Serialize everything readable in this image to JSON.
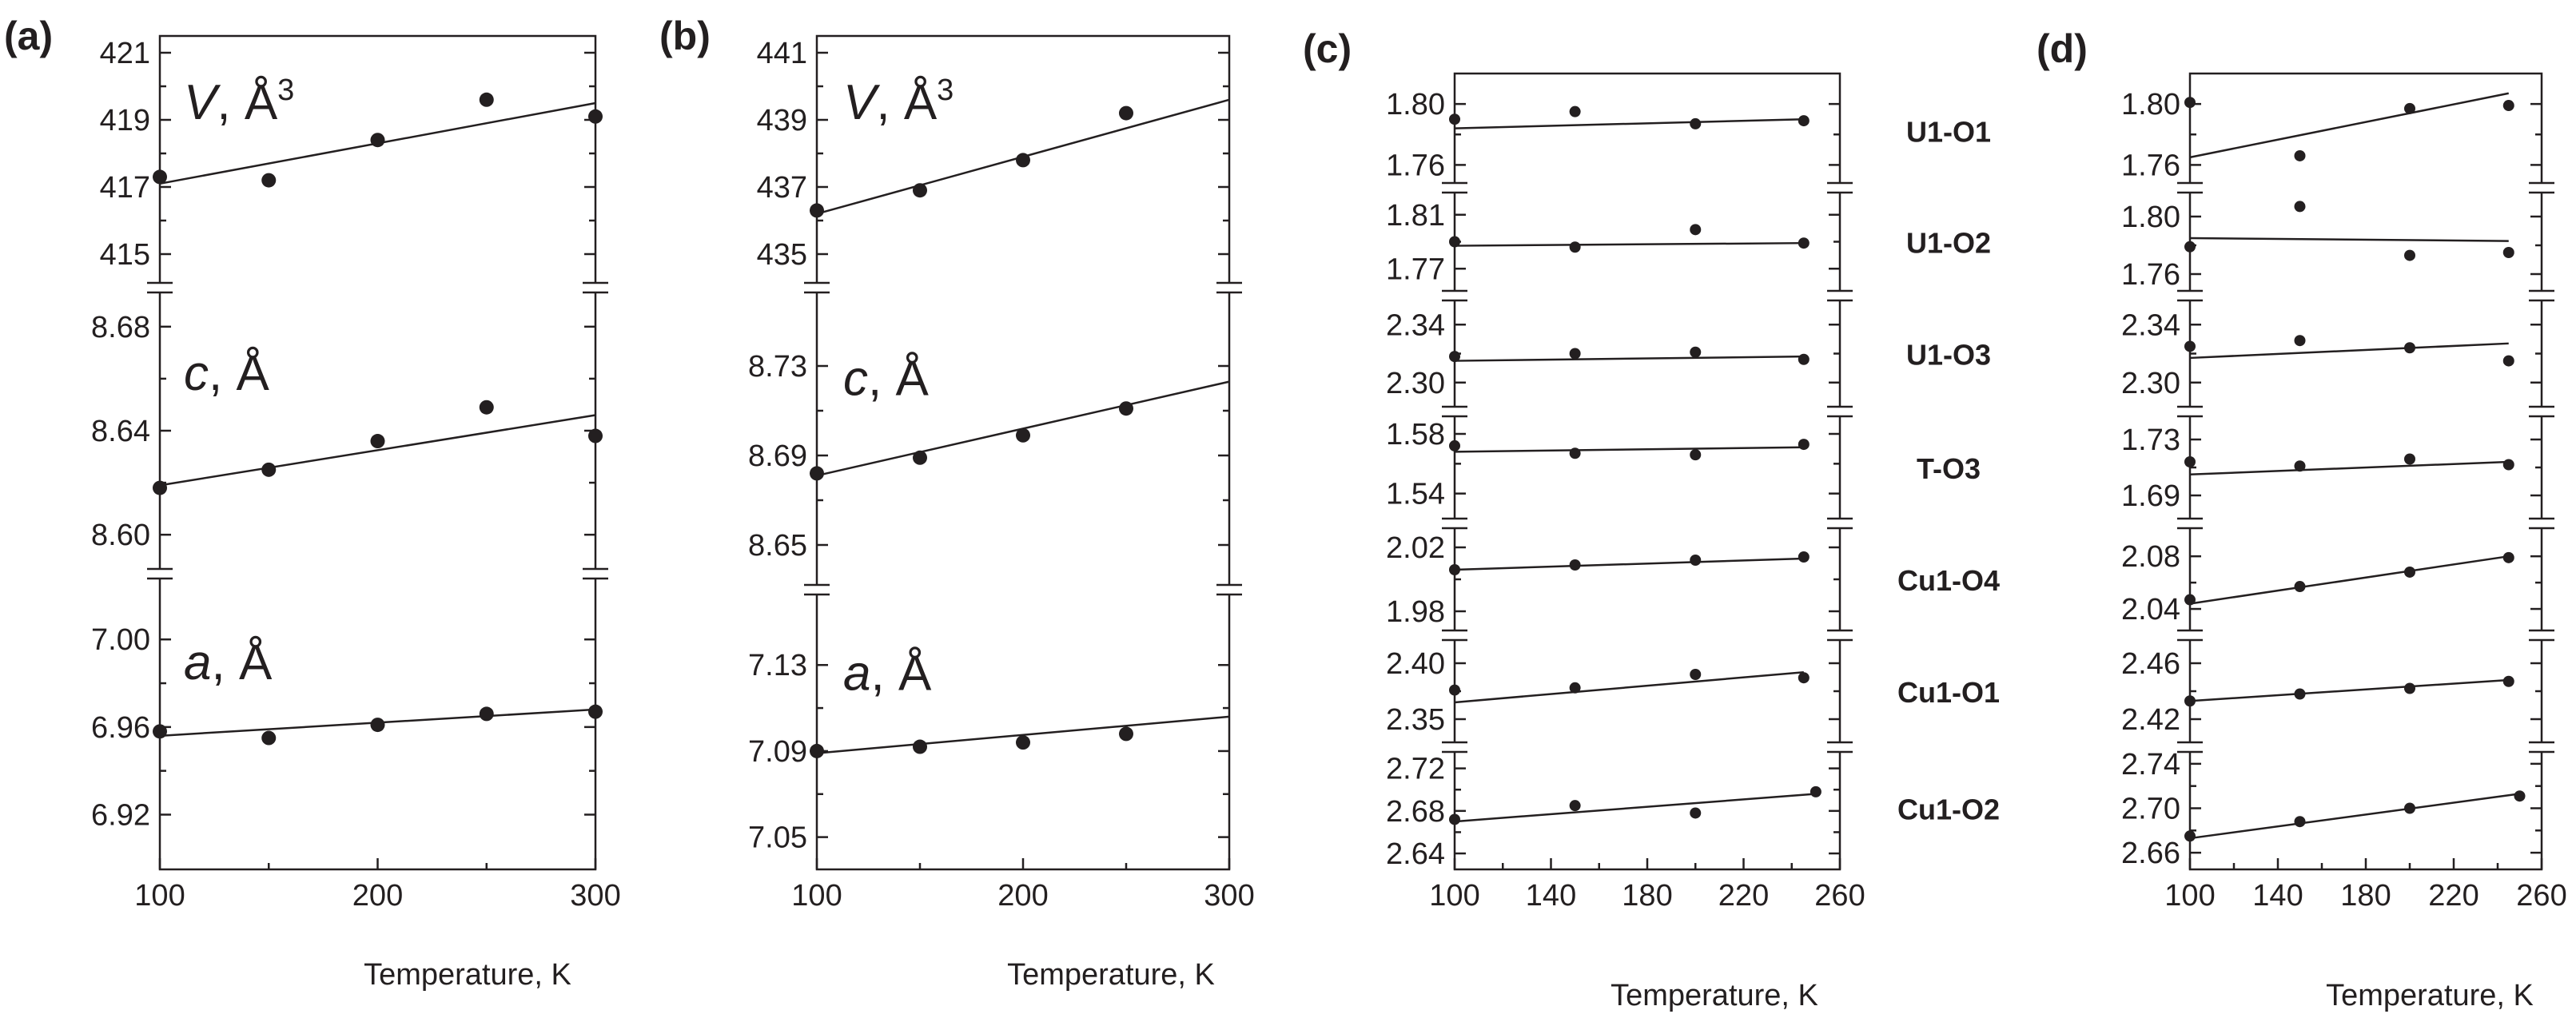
{
  "colors": {
    "ink": "#231f20",
    "background": "#ffffff"
  },
  "chart_data": [
    {
      "type": "scatter",
      "panel": "(a)",
      "xlabel": "Temperature, K",
      "xlim": [
        100,
        300
      ],
      "xticks": [
        100,
        200,
        300
      ],
      "subplots": [
        {
          "name": "V",
          "label_symbol": "V",
          "label_unit": "Å",
          "label_sup": "3",
          "ylim": [
            414,
            421.5
          ],
          "yticks": [
            415,
            417,
            419,
            421
          ],
          "y_decimals": 0,
          "points": [
            [
              100,
              417.3
            ],
            [
              150,
              417.2
            ],
            [
              200,
              418.4
            ],
            [
              250,
              419.6
            ],
            [
              300,
              419.1
            ]
          ],
          "fit": [
            [
              100,
              417.1
            ],
            [
              300,
              419.5
            ]
          ]
        },
        {
          "name": "c",
          "label_symbol": "c",
          "label_unit": "Å",
          "label_sup": "",
          "ylim": [
            8.585,
            8.695
          ],
          "yticks": [
            8.6,
            8.64,
            8.68
          ],
          "y_decimals": 2,
          "points": [
            [
              100,
              8.618
            ],
            [
              150,
              8.625
            ],
            [
              200,
              8.636
            ],
            [
              250,
              8.649
            ],
            [
              300,
              8.638
            ]
          ],
          "fit": [
            [
              100,
              8.619
            ],
            [
              300,
              8.646
            ]
          ]
        },
        {
          "name": "a",
          "label_symbol": "a",
          "label_unit": "Å",
          "label_sup": "",
          "ylim": [
            6.895,
            7.03
          ],
          "yticks": [
            6.92,
            6.96,
            7.0
          ],
          "y_decimals": 2,
          "points": [
            [
              100,
              6.958
            ],
            [
              150,
              6.955
            ],
            [
              200,
              6.961
            ],
            [
              250,
              6.966
            ],
            [
              300,
              6.967
            ]
          ],
          "fit": [
            [
              100,
              6.956
            ],
            [
              300,
              6.968
            ]
          ]
        }
      ]
    },
    {
      "type": "scatter",
      "panel": "(b)",
      "xlabel": "Temperature, K",
      "xlim": [
        100,
        300
      ],
      "xticks": [
        100,
        200,
        300
      ],
      "subplots": [
        {
          "name": "V",
          "label_symbol": "V",
          "label_unit": "Å",
          "label_sup": "3",
          "ylim": [
            434,
            441.5
          ],
          "yticks": [
            435,
            437,
            439,
            441
          ],
          "y_decimals": 0,
          "points": [
            [
              100,
              436.3
            ],
            [
              150,
              436.9
            ],
            [
              200,
              437.8
            ],
            [
              250,
              439.2
            ]
          ],
          "fit": [
            [
              100,
              436.2
            ],
            [
              300,
              439.6
            ]
          ]
        },
        {
          "name": "c",
          "label_symbol": "c",
          "label_unit": "Å",
          "label_sup": "",
          "ylim": [
            8.63,
            8.765
          ],
          "yticks": [
            8.65,
            8.69,
            8.73
          ],
          "y_decimals": 2,
          "points": [
            [
              100,
              8.682
            ],
            [
              150,
              8.689
            ],
            [
              200,
              8.699
            ],
            [
              250,
              8.711
            ]
          ],
          "fit": [
            [
              100,
              8.681
            ],
            [
              300,
              8.723
            ]
          ]
        },
        {
          "name": "a",
          "label_symbol": "a",
          "label_unit": "Å",
          "label_sup": "",
          "ylim": [
            7.035,
            7.165
          ],
          "yticks": [
            7.05,
            7.09,
            7.13
          ],
          "y_decimals": 2,
          "points": [
            [
              100,
              7.09
            ],
            [
              150,
              7.092
            ],
            [
              200,
              7.094
            ],
            [
              250,
              7.098
            ]
          ],
          "fit": [
            [
              100,
              7.089
            ],
            [
              300,
              7.106
            ]
          ]
        }
      ]
    },
    {
      "type": "scatter",
      "panel": "(c)",
      "xlabel": "Temperature, K",
      "xlim": [
        100,
        260
      ],
      "xticks": [
        100,
        140,
        180,
        220,
        260
      ],
      "subplots": [
        {
          "name": "U1-O1",
          "ylim": [
            1.745,
            1.82
          ],
          "yticks": [
            1.76,
            1.8
          ],
          "y_decimals": 2,
          "points": [
            [
              100,
              1.79
            ],
            [
              150,
              1.795
            ],
            [
              200,
              1.787
            ],
            [
              245,
              1.789
            ]
          ],
          "fit": [
            [
              100,
              1.784
            ],
            [
              245,
              1.79
            ]
          ]
        },
        {
          "name": "U1-O2",
          "ylim": [
            1.75,
            1.83
          ],
          "yticks": [
            1.77,
            1.81
          ],
          "y_decimals": 2,
          "points": [
            [
              100,
              1.79
            ],
            [
              150,
              1.786
            ],
            [
              200,
              1.799
            ],
            [
              245,
              1.789
            ]
          ],
          "fit": [
            [
              100,
              1.787
            ],
            [
              245,
              1.789
            ]
          ]
        },
        {
          "name": "U1-O3",
          "ylim": [
            2.28,
            2.36
          ],
          "yticks": [
            2.3,
            2.34
          ],
          "y_decimals": 2,
          "points": [
            [
              100,
              2.318
            ],
            [
              150,
              2.32
            ],
            [
              200,
              2.321
            ],
            [
              245,
              2.316
            ]
          ],
          "fit": [
            [
              100,
              2.315
            ],
            [
              245,
              2.318
            ]
          ]
        },
        {
          "name": "T-O3",
          "ylim": [
            1.52,
            1.595
          ],
          "yticks": [
            1.54,
            1.58
          ],
          "y_decimals": 2,
          "points": [
            [
              100,
              1.572
            ],
            [
              150,
              1.567
            ],
            [
              200,
              1.566
            ],
            [
              245,
              1.573
            ]
          ],
          "fit": [
            [
              100,
              1.568
            ],
            [
              245,
              1.571
            ]
          ]
        },
        {
          "name": "Cu1-O4",
          "ylim": [
            1.965,
            2.035
          ],
          "yticks": [
            1.98,
            2.02
          ],
          "y_decimals": 2,
          "points": [
            [
              100,
              2.006
            ],
            [
              150,
              2.009
            ],
            [
              200,
              2.012
            ],
            [
              245,
              2.014
            ]
          ],
          "fit": [
            [
              100,
              2.006
            ],
            [
              245,
              2.013
            ]
          ]
        },
        {
          "name": "Cu1-O1",
          "ylim": [
            2.325,
            2.425
          ],
          "yticks": [
            2.35,
            2.4
          ],
          "y_decimals": 2,
          "points": [
            [
              100,
              2.376
            ],
            [
              150,
              2.378
            ],
            [
              200,
              2.39
            ],
            [
              245,
              2.387
            ]
          ],
          "fit": [
            [
              100,
              2.365
            ],
            [
              245,
              2.392
            ]
          ]
        },
        {
          "name": "Cu1-O2",
          "ylim": [
            2.625,
            2.74
          ],
          "yticks": [
            2.64,
            2.68,
            2.72
          ],
          "y_decimals": 2,
          "points": [
            [
              100,
              2.672
            ],
            [
              150,
              2.685
            ],
            [
              200,
              2.678
            ],
            [
              250,
              2.698
            ]
          ],
          "fit": [
            [
              100,
              2.67
            ],
            [
              250,
              2.696
            ]
          ]
        }
      ]
    },
    {
      "type": "scatter",
      "panel": "(d)",
      "xlabel": "Temperature, K",
      "xlim": [
        100,
        260
      ],
      "xticks": [
        100,
        140,
        180,
        220,
        260
      ],
      "subplots": [
        {
          "name": "U1-O1",
          "ylim": [
            1.745,
            1.82
          ],
          "yticks": [
            1.76,
            1.8
          ],
          "y_decimals": 2,
          "points": [
            [
              100,
              1.801
            ],
            [
              150,
              1.766
            ],
            [
              200,
              1.797
            ],
            [
              245,
              1.799
            ]
          ],
          "fit": [
            [
              100,
              1.765
            ],
            [
              245,
              1.807
            ]
          ]
        },
        {
          "name": "U1-O2",
          "ylim": [
            1.745,
            1.82
          ],
          "yticks": [
            1.76,
            1.8
          ],
          "y_decimals": 2,
          "points": [
            [
              100,
              1.779
            ],
            [
              150,
              1.807
            ],
            [
              200,
              1.773
            ],
            [
              245,
              1.775
            ]
          ],
          "fit": [
            [
              100,
              1.785
            ],
            [
              245,
              1.783
            ]
          ]
        },
        {
          "name": "U1-O3",
          "ylim": [
            2.28,
            2.36
          ],
          "yticks": [
            2.3,
            2.34
          ],
          "y_decimals": 2,
          "points": [
            [
              100,
              2.325
            ],
            [
              150,
              2.329
            ],
            [
              200,
              2.324
            ],
            [
              245,
              2.315
            ]
          ],
          "fit": [
            [
              100,
              2.317
            ],
            [
              245,
              2.327
            ]
          ]
        },
        {
          "name": "T-O3",
          "ylim": [
            1.67,
            1.75
          ],
          "yticks": [
            1.69,
            1.73
          ],
          "y_decimals": 2,
          "points": [
            [
              100,
              1.714
            ],
            [
              150,
              1.711
            ],
            [
              200,
              1.716
            ],
            [
              245,
              1.712
            ]
          ],
          "fit": [
            [
              100,
              1.705
            ],
            [
              245,
              1.714
            ]
          ]
        },
        {
          "name": "Cu1-O4",
          "ylim": [
            2.02,
            2.105
          ],
          "yticks": [
            2.04,
            2.08
          ],
          "y_decimals": 2,
          "points": [
            [
              100,
              2.047
            ],
            [
              150,
              2.057
            ],
            [
              200,
              2.068
            ],
            [
              245,
              2.079
            ]
          ],
          "fit": [
            [
              100,
              2.044
            ],
            [
              245,
              2.08
            ]
          ]
        },
        {
          "name": "Cu1-O1",
          "ylim": [
            2.4,
            2.48
          ],
          "yticks": [
            2.42,
            2.46
          ],
          "y_decimals": 2,
          "points": [
            [
              100,
              2.433
            ],
            [
              150,
              2.438
            ],
            [
              200,
              2.442
            ],
            [
              245,
              2.447
            ]
          ],
          "fit": [
            [
              100,
              2.433
            ],
            [
              245,
              2.448
            ]
          ]
        },
        {
          "name": "Cu1-O2",
          "ylim": [
            2.645,
            2.755
          ],
          "yticks": [
            2.66,
            2.7,
            2.74
          ],
          "y_decimals": 2,
          "points": [
            [
              100,
              2.675
            ],
            [
              150,
              2.688
            ],
            [
              200,
              2.7
            ],
            [
              250,
              2.711
            ]
          ],
          "fit": [
            [
              100,
              2.673
            ],
            [
              250,
              2.713
            ]
          ]
        }
      ]
    }
  ]
}
